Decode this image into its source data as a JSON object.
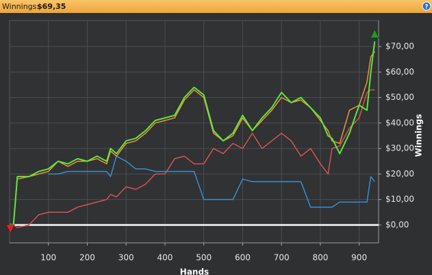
{
  "header": {
    "label": "Winnings:",
    "value": "$69,35",
    "help": "?"
  },
  "chart_data": {
    "type": "line",
    "x_label": "Hands",
    "y_label": "Winnings",
    "x": [
      0,
      10,
      20,
      50,
      75,
      100,
      125,
      150,
      175,
      200,
      225,
      250,
      260,
      275,
      300,
      325,
      350,
      375,
      400,
      425,
      450,
      475,
      500,
      525,
      550,
      575,
      600,
      625,
      650,
      675,
      700,
      725,
      750,
      775,
      800,
      820,
      830,
      850,
      875,
      900,
      920,
      930,
      940
    ],
    "series": [
      {
        "color": "#d9534f",
        "values": [
          0,
          0,
          -1,
          0,
          4,
          5,
          5,
          5,
          7,
          8,
          9,
          10,
          12,
          11,
          15,
          14,
          16,
          20,
          20,
          26,
          27,
          24,
          24,
          30,
          28,
          32,
          30,
          36,
          30,
          33,
          36,
          33,
          27,
          30,
          24,
          20,
          30,
          31,
          38,
          42,
          52,
          53,
          53
        ]
      },
      {
        "color": "#3a8fd0",
        "values": [
          null,
          null,
          null,
          null,
          null,
          20,
          20,
          21,
          21,
          21,
          21,
          21,
          19,
          27,
          25,
          22,
          22,
          21,
          21,
          21,
          21,
          21,
          10,
          10,
          10,
          10,
          18,
          17,
          17,
          17,
          17,
          17,
          17,
          7,
          7,
          7,
          7,
          9,
          9,
          9,
          9,
          19,
          17
        ]
      },
      {
        "color": "#f0953a",
        "values": [
          0,
          0,
          18,
          19,
          20,
          21,
          25,
          23,
          25,
          25,
          26,
          24,
          29,
          27,
          32,
          33,
          36,
          40,
          41,
          42,
          49,
          53,
          50,
          36,
          33,
          35,
          42,
          37,
          41,
          45,
          50,
          48,
          49,
          46,
          41,
          37,
          33,
          32,
          45,
          47,
          56,
          66,
          68
        ]
      },
      {
        "color": "#5de83a",
        "values": [
          0,
          0,
          19,
          19,
          21,
          22,
          25,
          24,
          26,
          25,
          27,
          25,
          30,
          28,
          33,
          34,
          37,
          41,
          42,
          43,
          50,
          54,
          51,
          37,
          33,
          36,
          43,
          37,
          42,
          46,
          52,
          48,
          50,
          46,
          42,
          35,
          34,
          28,
          36,
          47,
          45,
          60,
          72
        ]
      }
    ],
    "markers": [
      {
        "x": 2,
        "value": -1.5,
        "shape": "down",
        "color": "#e82020"
      },
      {
        "x": 940,
        "value": 75,
        "shape": "up",
        "color": "#1f9a1f"
      }
    ],
    "xlim": [
      0,
      950
    ],
    "ylim": [
      -7,
      80.2
    ],
    "xticks": [
      100,
      200,
      300,
      400,
      500,
      600,
      700,
      800,
      900
    ],
    "yticks": [
      {
        "value": 0,
        "label": "$0,00"
      },
      {
        "value": 10,
        "label": "$10,00"
      },
      {
        "value": 20,
        "label": "$20,00"
      },
      {
        "value": 30,
        "label": "$30,00"
      },
      {
        "value": 40,
        "label": "$40,00"
      },
      {
        "value": 50,
        "label": "$50,00"
      },
      {
        "value": 60,
        "label": "$60,00"
      },
      {
        "value": 70,
        "label": "$70,00"
      }
    ],
    "grid": true,
    "zero_line": true
  }
}
